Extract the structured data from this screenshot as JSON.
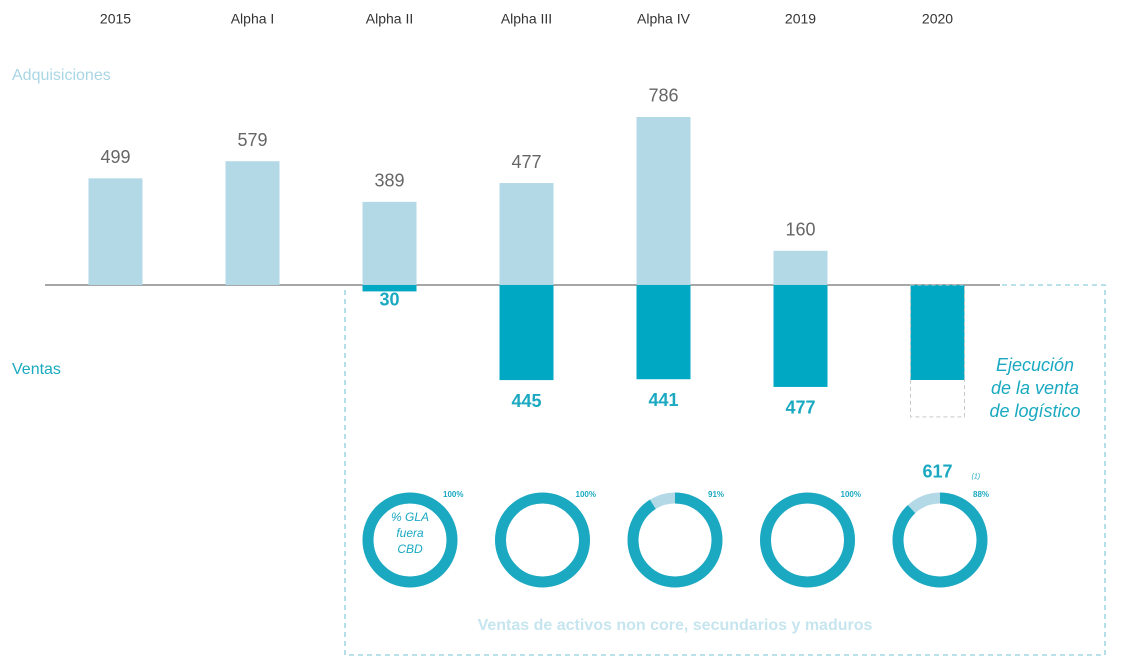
{
  "chart_data": [
    {
      "type": "bar",
      "categories": [
        "2015",
        "Alpha I",
        "Alpha II",
        "Alpha III",
        "Alpha IV",
        "2019",
        "2020"
      ],
      "series": [
        {
          "name": "Adquisiciones",
          "color": "#b3d9e7",
          "values": [
            499,
            579,
            389,
            477,
            786,
            160,
            null
          ]
        },
        {
          "name": "Ventas",
          "color": "#00a8c4",
          "values": [
            null,
            null,
            30,
            445,
            441,
            477,
            617
          ]
        }
      ],
      "ylim": [
        -700,
        800
      ],
      "annotation": [
        "Ejecución",
        "de la venta",
        "de logístico"
      ],
      "footnote": "(1)"
    },
    {
      "type": "donut",
      "values": [
        100,
        100,
        91,
        100,
        88
      ],
      "value_labels": [
        "100%",
        "100%",
        "91%",
        "100%",
        "88%"
      ],
      "color": "#1aa9c1",
      "rest_color": "#b3d9e7",
      "center_label": [
        "% GLA",
        "fuera",
        "CBD"
      ],
      "caption": "Ventas de activos non core, secundarios y maduros"
    }
  ]
}
